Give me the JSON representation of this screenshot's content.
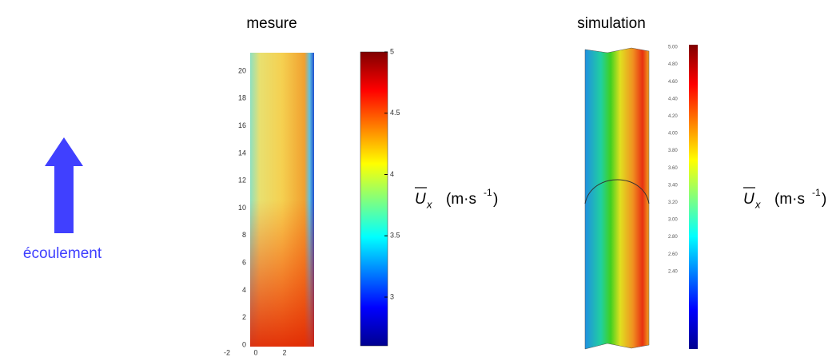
{
  "flow_label": "écoulement",
  "mesure": {
    "title": "mesure",
    "yticks": [
      0,
      2,
      4,
      6,
      8,
      10,
      12,
      14,
      16,
      18,
      20
    ],
    "xticks": [
      -2,
      0,
      2
    ],
    "colorbar_ticks": [
      3,
      3.5,
      4,
      4.5,
      5
    ],
    "unit": {
      "symbol": "U",
      "subscript": "x",
      "open": "(m·s",
      "exponent": "-1",
      "close": ")"
    }
  },
  "simulation": {
    "title": "simulation",
    "colorbar_ticks": [
      "5.00",
      "4.80",
      "4.60",
      "4.40",
      "4.20",
      "4.00",
      "3.80",
      "3.60",
      "3.40",
      "3.20",
      "3.00",
      "2.80",
      "2.60",
      "2.40"
    ],
    "unit": {
      "symbol": "U",
      "subscript": "x",
      "open": "(m·s",
      "exponent": "-1",
      "close": ")"
    }
  }
}
